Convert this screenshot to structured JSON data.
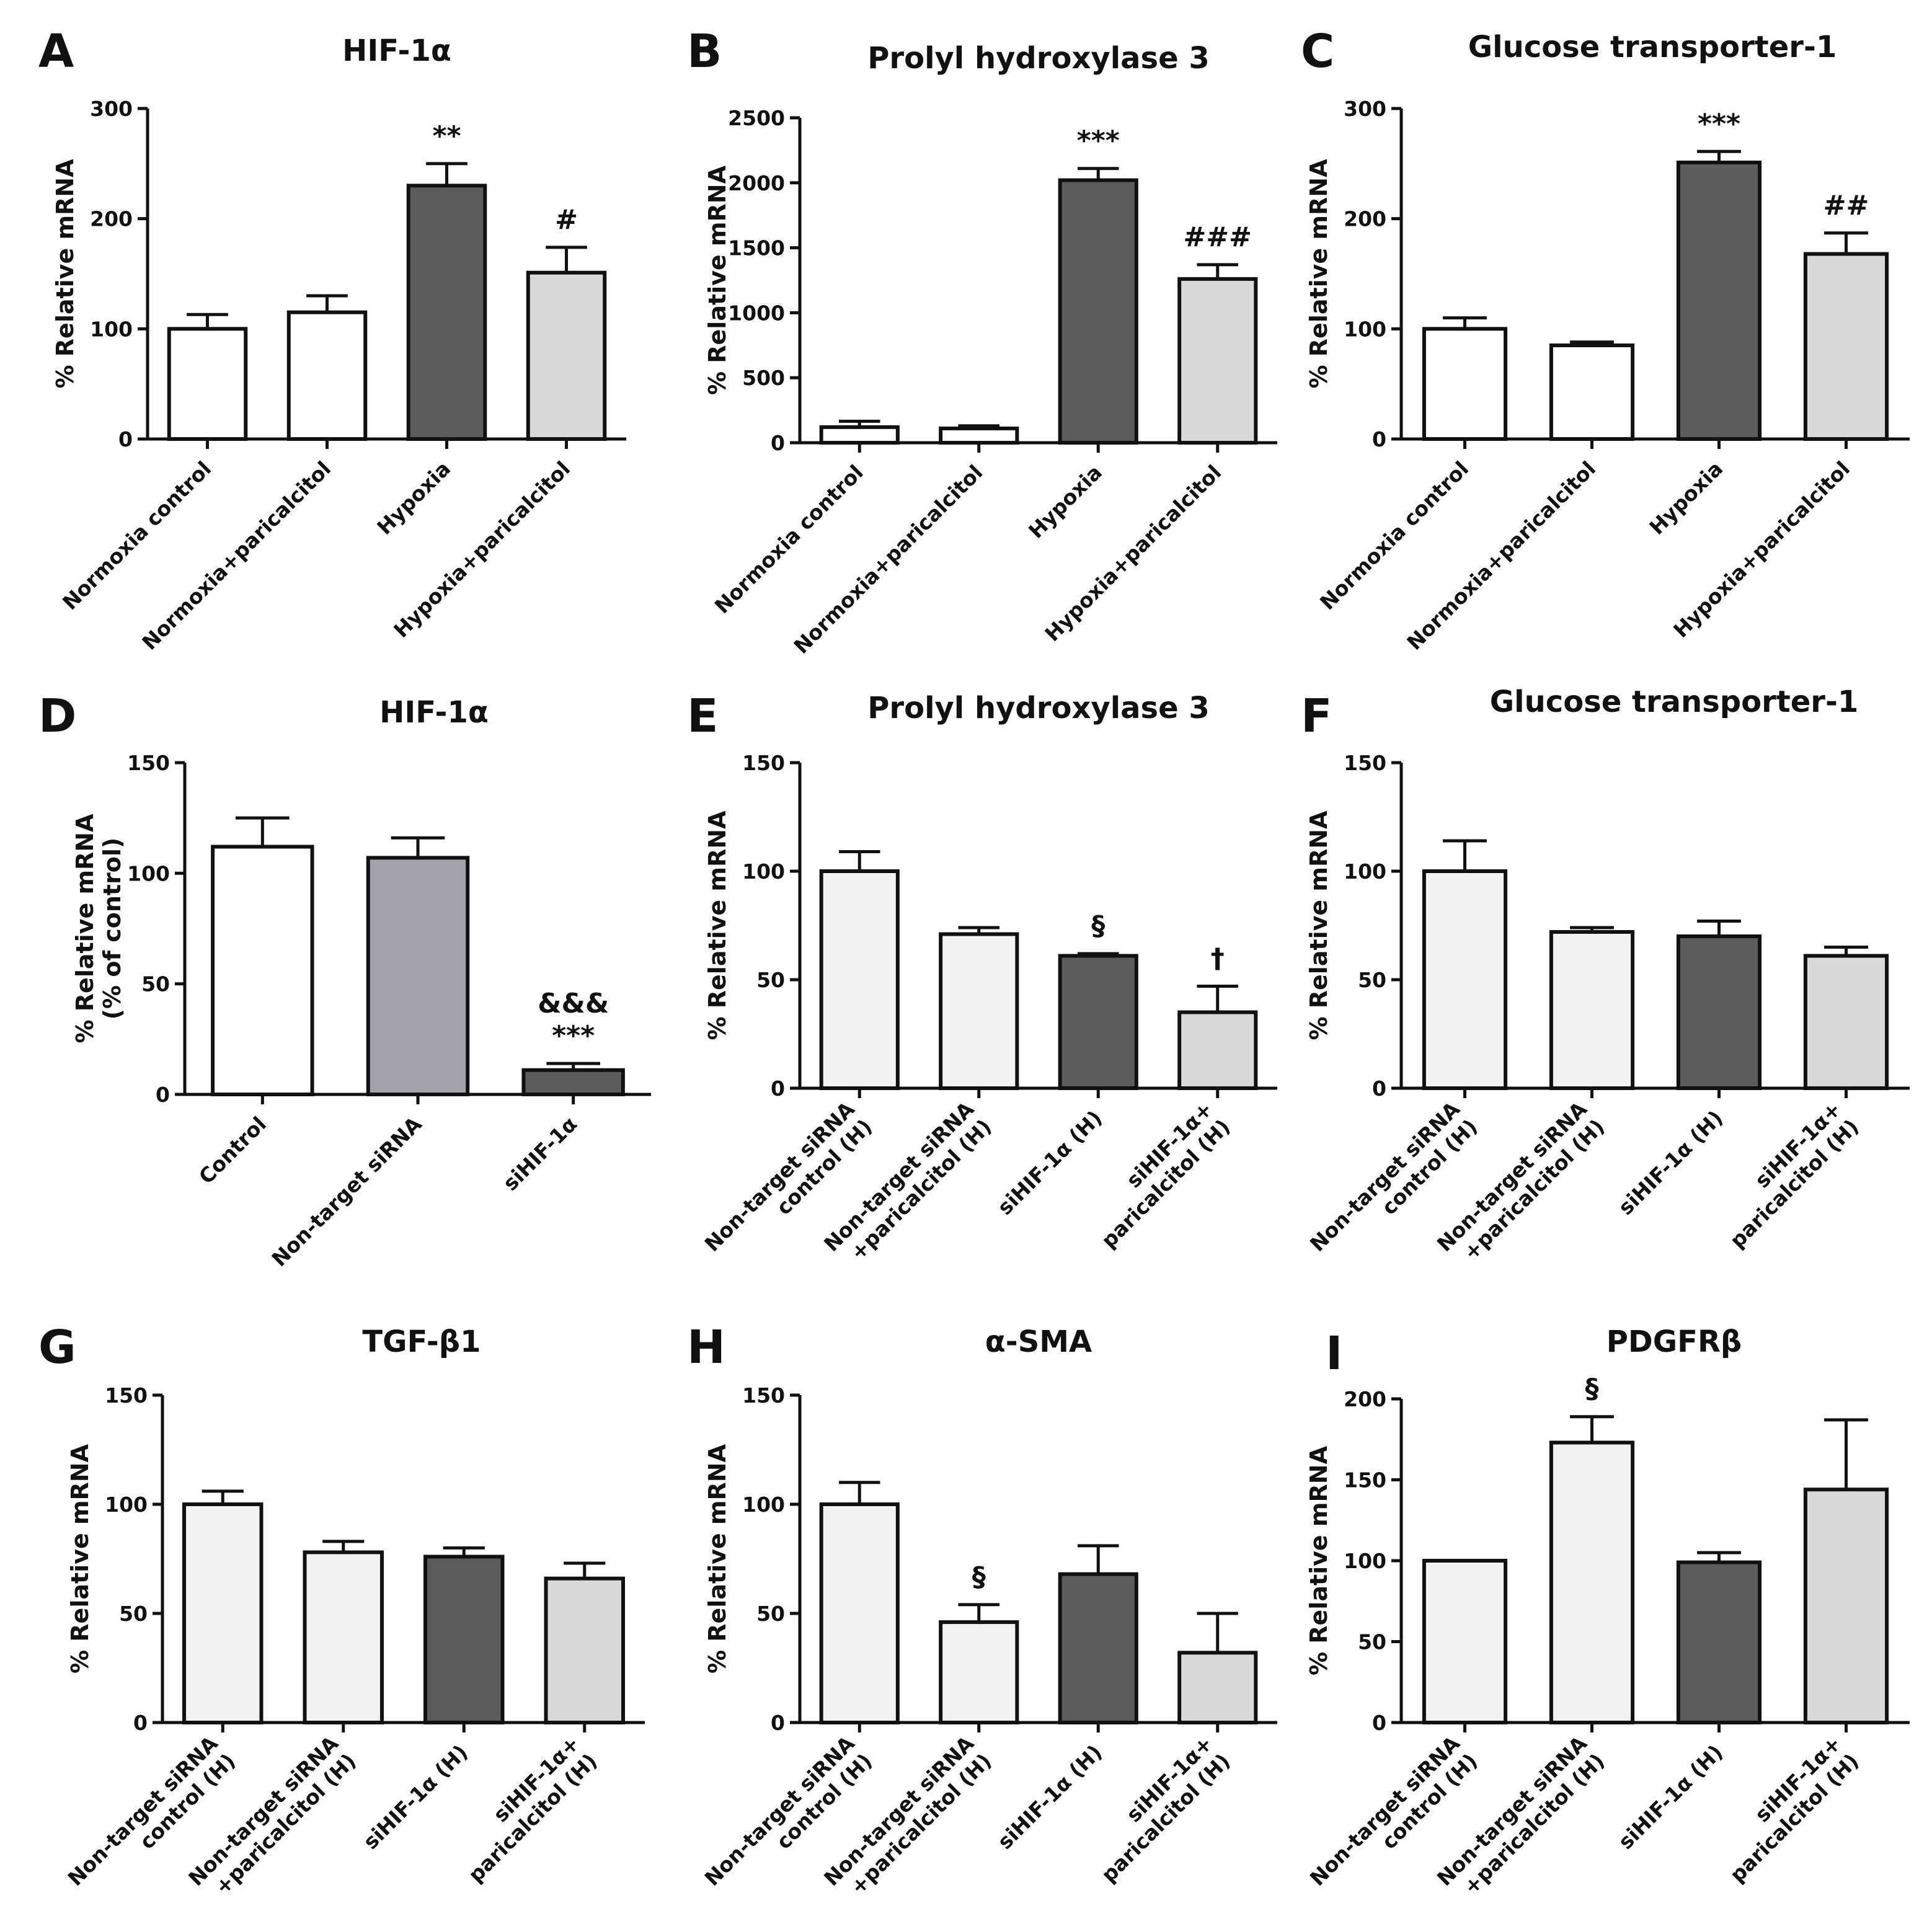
{
  "chart_data": [
    {
      "type": "bar",
      "letter": "A",
      "title": "HIF-1α",
      "ylabel": "% Relative mRNA",
      "ylim": [
        0,
        300
      ],
      "yticks": [
        0,
        100,
        200,
        300
      ],
      "categories": [
        "Normoxia control",
        "Normoxia+paricalcitol",
        "Hypoxia",
        "Hypoxia+paricalcitol"
      ],
      "values": [
        100,
        115,
        230,
        151
      ],
      "errors": [
        13,
        15,
        20,
        23
      ],
      "colors": [
        "#ffffff",
        "#ffffff",
        "#5c5c5c",
        "#d9d9d9"
      ],
      "annotations": [
        "",
        "",
        "**",
        "#"
      ]
    },
    {
      "type": "bar",
      "letter": "B",
      "title": "Prolyl hydroxylase 3",
      "ylabel": "% Relative mRNA",
      "ylim": [
        0,
        2500
      ],
      "yticks": [
        0,
        500,
        1000,
        1500,
        2000,
        2500
      ],
      "categories": [
        "Normoxia control",
        "Normoxia+paricalcitol",
        "Hypoxia",
        "Hypoxia+paricalcitol"
      ],
      "values": [
        120,
        110,
        2020,
        1260
      ],
      "errors": [
        45,
        20,
        90,
        110
      ],
      "colors": [
        "#ffffff",
        "#ffffff",
        "#5c5c5c",
        "#d9d9d9"
      ],
      "annotations": [
        "",
        "",
        "***",
        "###"
      ]
    },
    {
      "type": "bar",
      "letter": "C",
      "title": "Glucose transporter-1",
      "ylabel": "% Relative mRNA",
      "ylim": [
        0,
        300
      ],
      "yticks": [
        0,
        100,
        200,
        300
      ],
      "categories": [
        "Normoxia control",
        "Normoxia+paricalcitol",
        "Hypoxia",
        "Hypoxia+paricalcitol"
      ],
      "values": [
        100,
        85,
        251,
        168
      ],
      "errors": [
        10,
        3,
        10,
        19
      ],
      "colors": [
        "#ffffff",
        "#ffffff",
        "#5c5c5c",
        "#d9d9d9"
      ],
      "annotations": [
        "",
        "",
        "***",
        "##"
      ]
    },
    {
      "type": "bar",
      "letter": "D",
      "title": "HIF-1α",
      "ylabel": "% Relative mRNA",
      "ylabel2": "(% of  control)",
      "ylim": [
        0,
        150
      ],
      "yticks": [
        0,
        50,
        100,
        150
      ],
      "categories": [
        "Control",
        "Non-target siRNA",
        "siHIF-1α"
      ],
      "values": [
        112,
        107,
        11
      ],
      "errors": [
        13,
        9,
        3
      ],
      "colors": [
        "#ffffff",
        "#a3a2aa",
        "#5c5c5c"
      ],
      "annotations": [
        "",
        "",
        "&&&\n***"
      ]
    },
    {
      "type": "bar",
      "letter": "E",
      "title": "Prolyl hydroxylase 3",
      "ylabel": "% Relative mRNA",
      "ylim": [
        0,
        150
      ],
      "yticks": [
        0,
        50,
        100,
        150
      ],
      "categories": [
        "Non-target siRNA\ncontrol (H)",
        "Non-target siRNA\n+paricalcitol (H)",
        "siHIF-1α (H)",
        "siHIF-1α+\nparicalcitol (H)"
      ],
      "values": [
        100,
        71,
        61,
        35
      ],
      "errors": [
        9,
        3,
        1,
        12
      ],
      "colors": [
        "#f2f2f2",
        "#f2f2f2",
        "#5c5c5c",
        "#d9d9d9"
      ],
      "annotations": [
        "",
        "",
        "§",
        "†"
      ]
    },
    {
      "type": "bar",
      "letter": "F",
      "title": "Glucose transporter-1",
      "ylabel": "% Relative mRNA",
      "ylim": [
        0,
        150
      ],
      "yticks": [
        0,
        50,
        100,
        150
      ],
      "categories": [
        "Non-target siRNA\ncontrol (H)",
        "Non-target siRNA\n+paricalcitol (H)",
        "siHIF-1α (H)",
        "siHIF-1α+\nparicalcitol (H)"
      ],
      "values": [
        100,
        72,
        70,
        61
      ],
      "errors": [
        14,
        2,
        7,
        4
      ],
      "colors": [
        "#f2f2f2",
        "#f2f2f2",
        "#5c5c5c",
        "#d9d9d9"
      ],
      "annotations": [
        "",
        "",
        "",
        ""
      ]
    },
    {
      "type": "bar",
      "letter": "G",
      "title": "TGF-β1",
      "ylabel": "% Relative mRNA",
      "ylim": [
        0,
        150
      ],
      "yticks": [
        0,
        50,
        100,
        150
      ],
      "categories": [
        "Non-target siRNA\ncontrol (H)",
        "Non-target siRNA\n+paricalcitol (H)",
        "siHIF-1α (H)",
        "siHIF-1α+\nparicalcitol (H)"
      ],
      "values": [
        100,
        78,
        76,
        66
      ],
      "errors": [
        6,
        5,
        4,
        7
      ],
      "colors": [
        "#f2f2f2",
        "#f2f2f2",
        "#5c5c5c",
        "#d9d9d9"
      ],
      "annotations": [
        "",
        "",
        "",
        ""
      ]
    },
    {
      "type": "bar",
      "letter": "H",
      "title": "α-SMA",
      "ylabel": "% Relative mRNA",
      "ylim": [
        0,
        150
      ],
      "yticks": [
        0,
        50,
        100,
        150
      ],
      "categories": [
        "Non-target siRNA\ncontrol (H)",
        "Non-target siRNA\n+paricalcitol (H)",
        "siHIF-1α (H)",
        "siHIF-1α+\nparicalcitol (H)"
      ],
      "values": [
        100,
        46,
        68,
        32
      ],
      "errors": [
        10,
        8,
        13,
        18
      ],
      "colors": [
        "#f2f2f2",
        "#f2f2f2",
        "#5c5c5c",
        "#d9d9d9"
      ],
      "annotations": [
        "",
        "§",
        "",
        ""
      ]
    },
    {
      "type": "bar",
      "letter": "I",
      "title": "PDGFRβ",
      "ylabel": "% Relative mRNA",
      "ylim": [
        0,
        200
      ],
      "yticks": [
        0,
        50,
        100,
        150,
        200
      ],
      "categories": [
        "Non-target siRNA\ncontrol (H)",
        "Non-target siRNA\n+paricalcitol (H)",
        "siHIF-1α (H)",
        "siHIF-1α+\nparicalcitol (H)"
      ],
      "values": [
        100,
        173,
        99,
        144
      ],
      "errors": [
        0,
        16,
        6,
        43
      ],
      "colors": [
        "#f2f2f2",
        "#f2f2f2",
        "#5c5c5c",
        "#d9d9d9"
      ],
      "annotations": [
        "",
        "§",
        "",
        ""
      ]
    }
  ]
}
